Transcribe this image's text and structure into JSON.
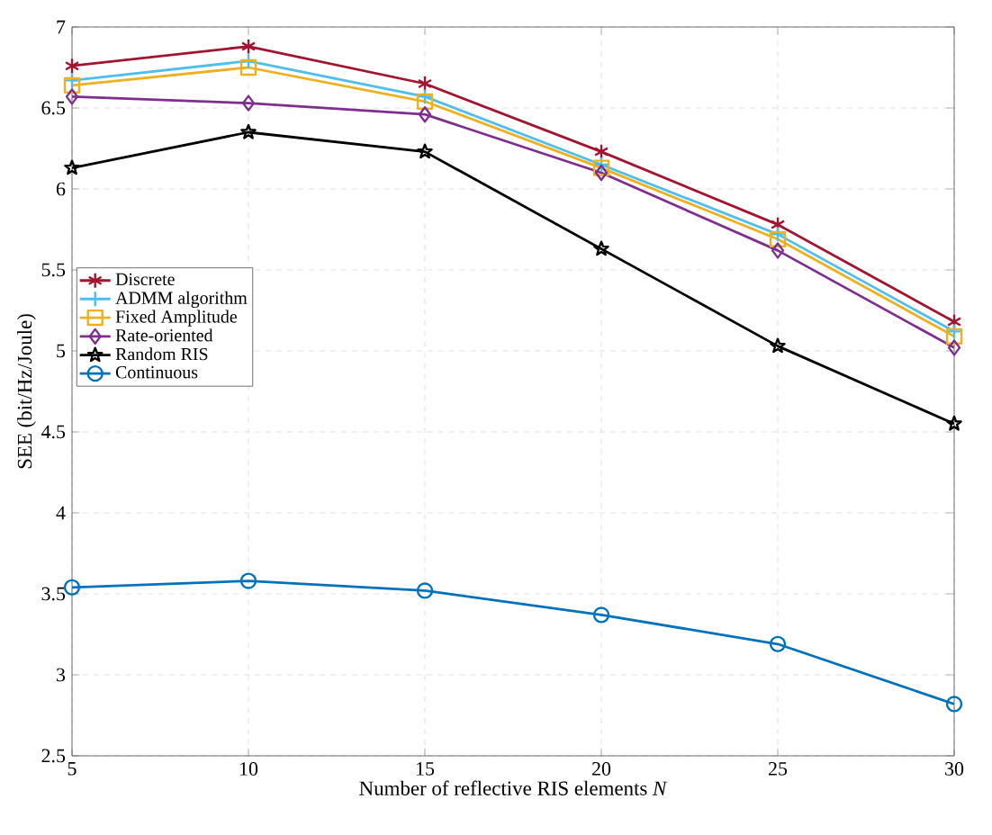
{
  "chart_data": {
    "type": "line",
    "xlabel": "Number of reflective RIS elements *N*",
    "ylabel": "SEE (bit/Hz/Joule)",
    "x": [
      5,
      10,
      15,
      20,
      25,
      30
    ],
    "series": [
      {
        "name": "Discrete",
        "color": "#a2142f",
        "marker": "cross",
        "values": [
          6.76,
          6.88,
          6.65,
          6.23,
          5.78,
          5.18
        ]
      },
      {
        "name": "ADMM algorithm",
        "color": "#4dbeee",
        "marker": "cross",
        "values": [
          6.67,
          6.79,
          6.57,
          6.15,
          5.72,
          5.12
        ]
      },
      {
        "name": "Fixed Amplitude",
        "color": "#edb120",
        "marker": "square",
        "values": [
          6.64,
          6.75,
          6.54,
          6.13,
          5.69,
          5.09
        ]
      },
      {
        "name": "Rate-oriented",
        "color": "#7e2f8e",
        "marker": "diamond",
        "values": [
          6.57,
          6.53,
          6.46,
          6.1,
          5.62,
          5.02
        ]
      },
      {
        "name": "Random RIS",
        "color": "#000000",
        "marker": "star",
        "values": [
          6.13,
          6.35,
          6.23,
          5.63,
          5.03,
          4.55
        ]
      },
      {
        "name": "Continuous",
        "color": "#0072bd",
        "marker": "circle",
        "values": [
          3.54,
          3.58,
          3.52,
          3.37,
          3.19,
          2.82
        ]
      }
    ],
    "xlim": [
      5,
      30
    ],
    "ylim": [
      2.5,
      7
    ],
    "xticks": [
      5,
      10,
      15,
      20,
      25,
      30
    ],
    "yticks": [
      2.5,
      3,
      3.5,
      4,
      4.5,
      5,
      5.5,
      6,
      6.5,
      7
    ],
    "grid": true,
    "legend": "left",
    "line_style": "solid"
  }
}
